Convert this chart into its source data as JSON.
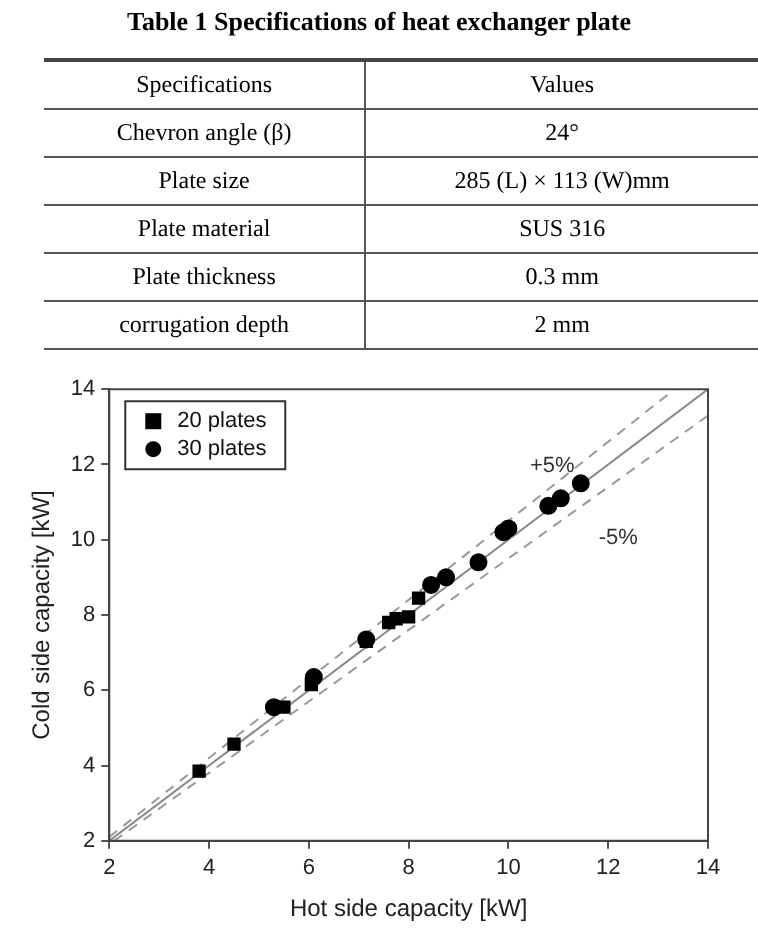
{
  "chart_data": [
    {
      "type": "other",
      "title": "Table 1 Specifications of heat exchanger plate",
      "annotations": [
        "Specifications",
        "Values",
        "Chevron angle (β)",
        "24°",
        "Plate size",
        "285 (L) × 113 (W)mm",
        "Plate material",
        "SUS 316",
        "Plate thickness",
        "0.3 mm",
        "corrugation depth",
        "2 mm"
      ]
    },
    {
      "type": "scatter",
      "xlabel": "Hot side capacity [kW]",
      "ylabel": "Cold side capacity [kW]",
      "xlim": [
        2,
        14
      ],
      "ylim": [
        2,
        14
      ],
      "xticks": [
        2,
        4,
        6,
        8,
        10,
        12,
        14
      ],
      "yticks": [
        2,
        4,
        6,
        8,
        10,
        12,
        14
      ],
      "grid": false,
      "legend": "top left",
      "series": [
        {
          "name": "20 plates",
          "color": "#000000",
          "marker": "square",
          "x": [
            3.8,
            4.5,
            5.5,
            6.05,
            7.15,
            7.6,
            7.75,
            8.0,
            8.2
          ],
          "values": [
            3.85,
            4.57,
            5.55,
            6.15,
            7.3,
            7.8,
            7.9,
            7.95,
            8.45
          ]
        },
        {
          "name": "30 plates",
          "color": "#000000",
          "marker": "circle",
          "x": [
            5.3,
            6.1,
            7.15,
            8.45,
            8.75,
            9.4,
            9.9,
            10.0,
            10.8,
            11.05,
            11.45
          ],
          "values": [
            5.55,
            6.35,
            7.35,
            8.8,
            9.0,
            9.4,
            10.2,
            10.3,
            10.9,
            11.1,
            11.5
          ]
        },
        {
          "type": "line",
          "color": "#888888",
          "line_style": "solid",
          "marker": "none",
          "x": [
            2,
            14
          ],
          "values": [
            2,
            14
          ]
        },
        {
          "type": "line",
          "color": "#999999",
          "line_style": "dashed",
          "marker": "none",
          "x": [
            2,
            13.33
          ],
          "values": [
            2.1,
            14
          ]
        },
        {
          "type": "line",
          "color": "#999999",
          "line_style": "dashed",
          "marker": "none",
          "x": [
            2.1,
            14
          ],
          "values": [
            2,
            13.3
          ]
        }
      ],
      "annotations": [
        "+5%",
        "-5%"
      ]
    }
  ]
}
